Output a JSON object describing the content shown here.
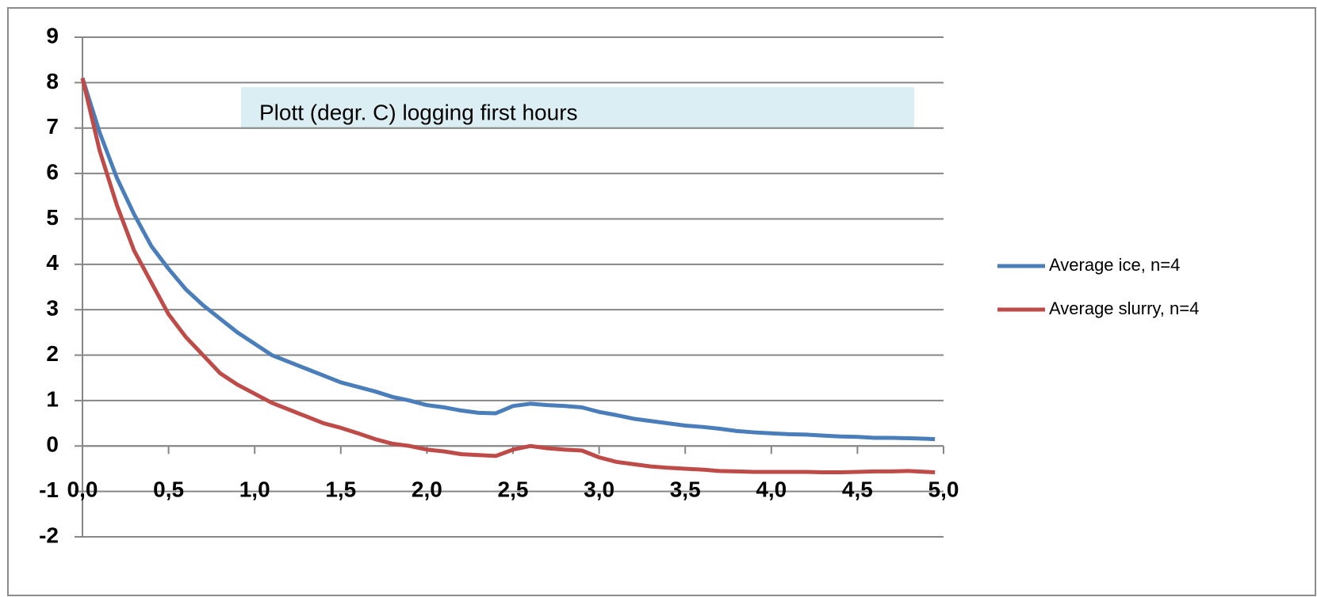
{
  "chart_data": {
    "type": "line",
    "annotation": "Plott  (degr. C) logging first hours",
    "x": [
      0,
      0.1,
      0.2,
      0.3,
      0.4,
      0.5,
      0.6,
      0.7,
      0.8,
      0.9,
      1.0,
      1.1,
      1.2,
      1.3,
      1.4,
      1.5,
      1.6,
      1.7,
      1.8,
      1.9,
      2.0,
      2.1,
      2.2,
      2.3,
      2.4,
      2.5,
      2.6,
      2.7,
      2.8,
      2.9,
      3.0,
      3.1,
      3.2,
      3.3,
      3.4,
      3.5,
      3.6,
      3.7,
      3.8,
      3.9,
      4.0,
      4.1,
      4.2,
      4.3,
      4.4,
      4.5,
      4.6,
      4.7,
      4.8,
      4.9,
      4.95
    ],
    "series": [
      {
        "name": "Average ice, n=4",
        "color": "#4a7ebb",
        "values": [
          8.1,
          6.9,
          5.9,
          5.1,
          4.4,
          3.9,
          3.45,
          3.1,
          2.8,
          2.5,
          2.25,
          2.0,
          1.85,
          1.7,
          1.55,
          1.4,
          1.3,
          1.2,
          1.08,
          1.0,
          0.9,
          0.85,
          0.78,
          0.73,
          0.72,
          0.88,
          0.93,
          0.9,
          0.88,
          0.85,
          0.75,
          0.68,
          0.6,
          0.55,
          0.5,
          0.45,
          0.42,
          0.38,
          0.33,
          0.3,
          0.28,
          0.26,
          0.25,
          0.23,
          0.21,
          0.2,
          0.18,
          0.18,
          0.17,
          0.16,
          0.15
        ]
      },
      {
        "name": "Average slurry, n=4",
        "color": "#be4b48",
        "values": [
          8.1,
          6.5,
          5.3,
          4.3,
          3.6,
          2.9,
          2.4,
          2.0,
          1.6,
          1.35,
          1.15,
          0.95,
          0.8,
          0.65,
          0.5,
          0.4,
          0.28,
          0.15,
          0.05,
          0.0,
          -0.08,
          -0.12,
          -0.18,
          -0.2,
          -0.22,
          -0.08,
          0.0,
          -0.05,
          -0.08,
          -0.1,
          -0.25,
          -0.35,
          -0.4,
          -0.45,
          -0.48,
          -0.5,
          -0.52,
          -0.55,
          -0.56,
          -0.57,
          -0.57,
          -0.57,
          -0.57,
          -0.58,
          -0.58,
          -0.57,
          -0.56,
          -0.56,
          -0.55,
          -0.57,
          -0.58
        ]
      }
    ],
    "xlim": [
      0,
      5
    ],
    "xticks": [
      {
        "value": 0,
        "label": "0,0"
      },
      {
        "value": 0.5,
        "label": "0,5"
      },
      {
        "value": 1,
        "label": "1,0"
      },
      {
        "value": 1.5,
        "label": "1,5"
      },
      {
        "value": 2,
        "label": "2,0"
      },
      {
        "value": 2.5,
        "label": "2,5"
      },
      {
        "value": 3,
        "label": "3,0"
      },
      {
        "value": 3.5,
        "label": "3,5"
      },
      {
        "value": 4,
        "label": "4,0"
      },
      {
        "value": 4.5,
        "label": "4,5"
      },
      {
        "value": 5,
        "label": "5,0"
      }
    ],
    "ylim": [
      -2,
      9
    ],
    "yticks": [
      -2,
      -1,
      0,
      1,
      2,
      3,
      4,
      5,
      6,
      7,
      8,
      9
    ],
    "grid": true,
    "legend": "right"
  }
}
